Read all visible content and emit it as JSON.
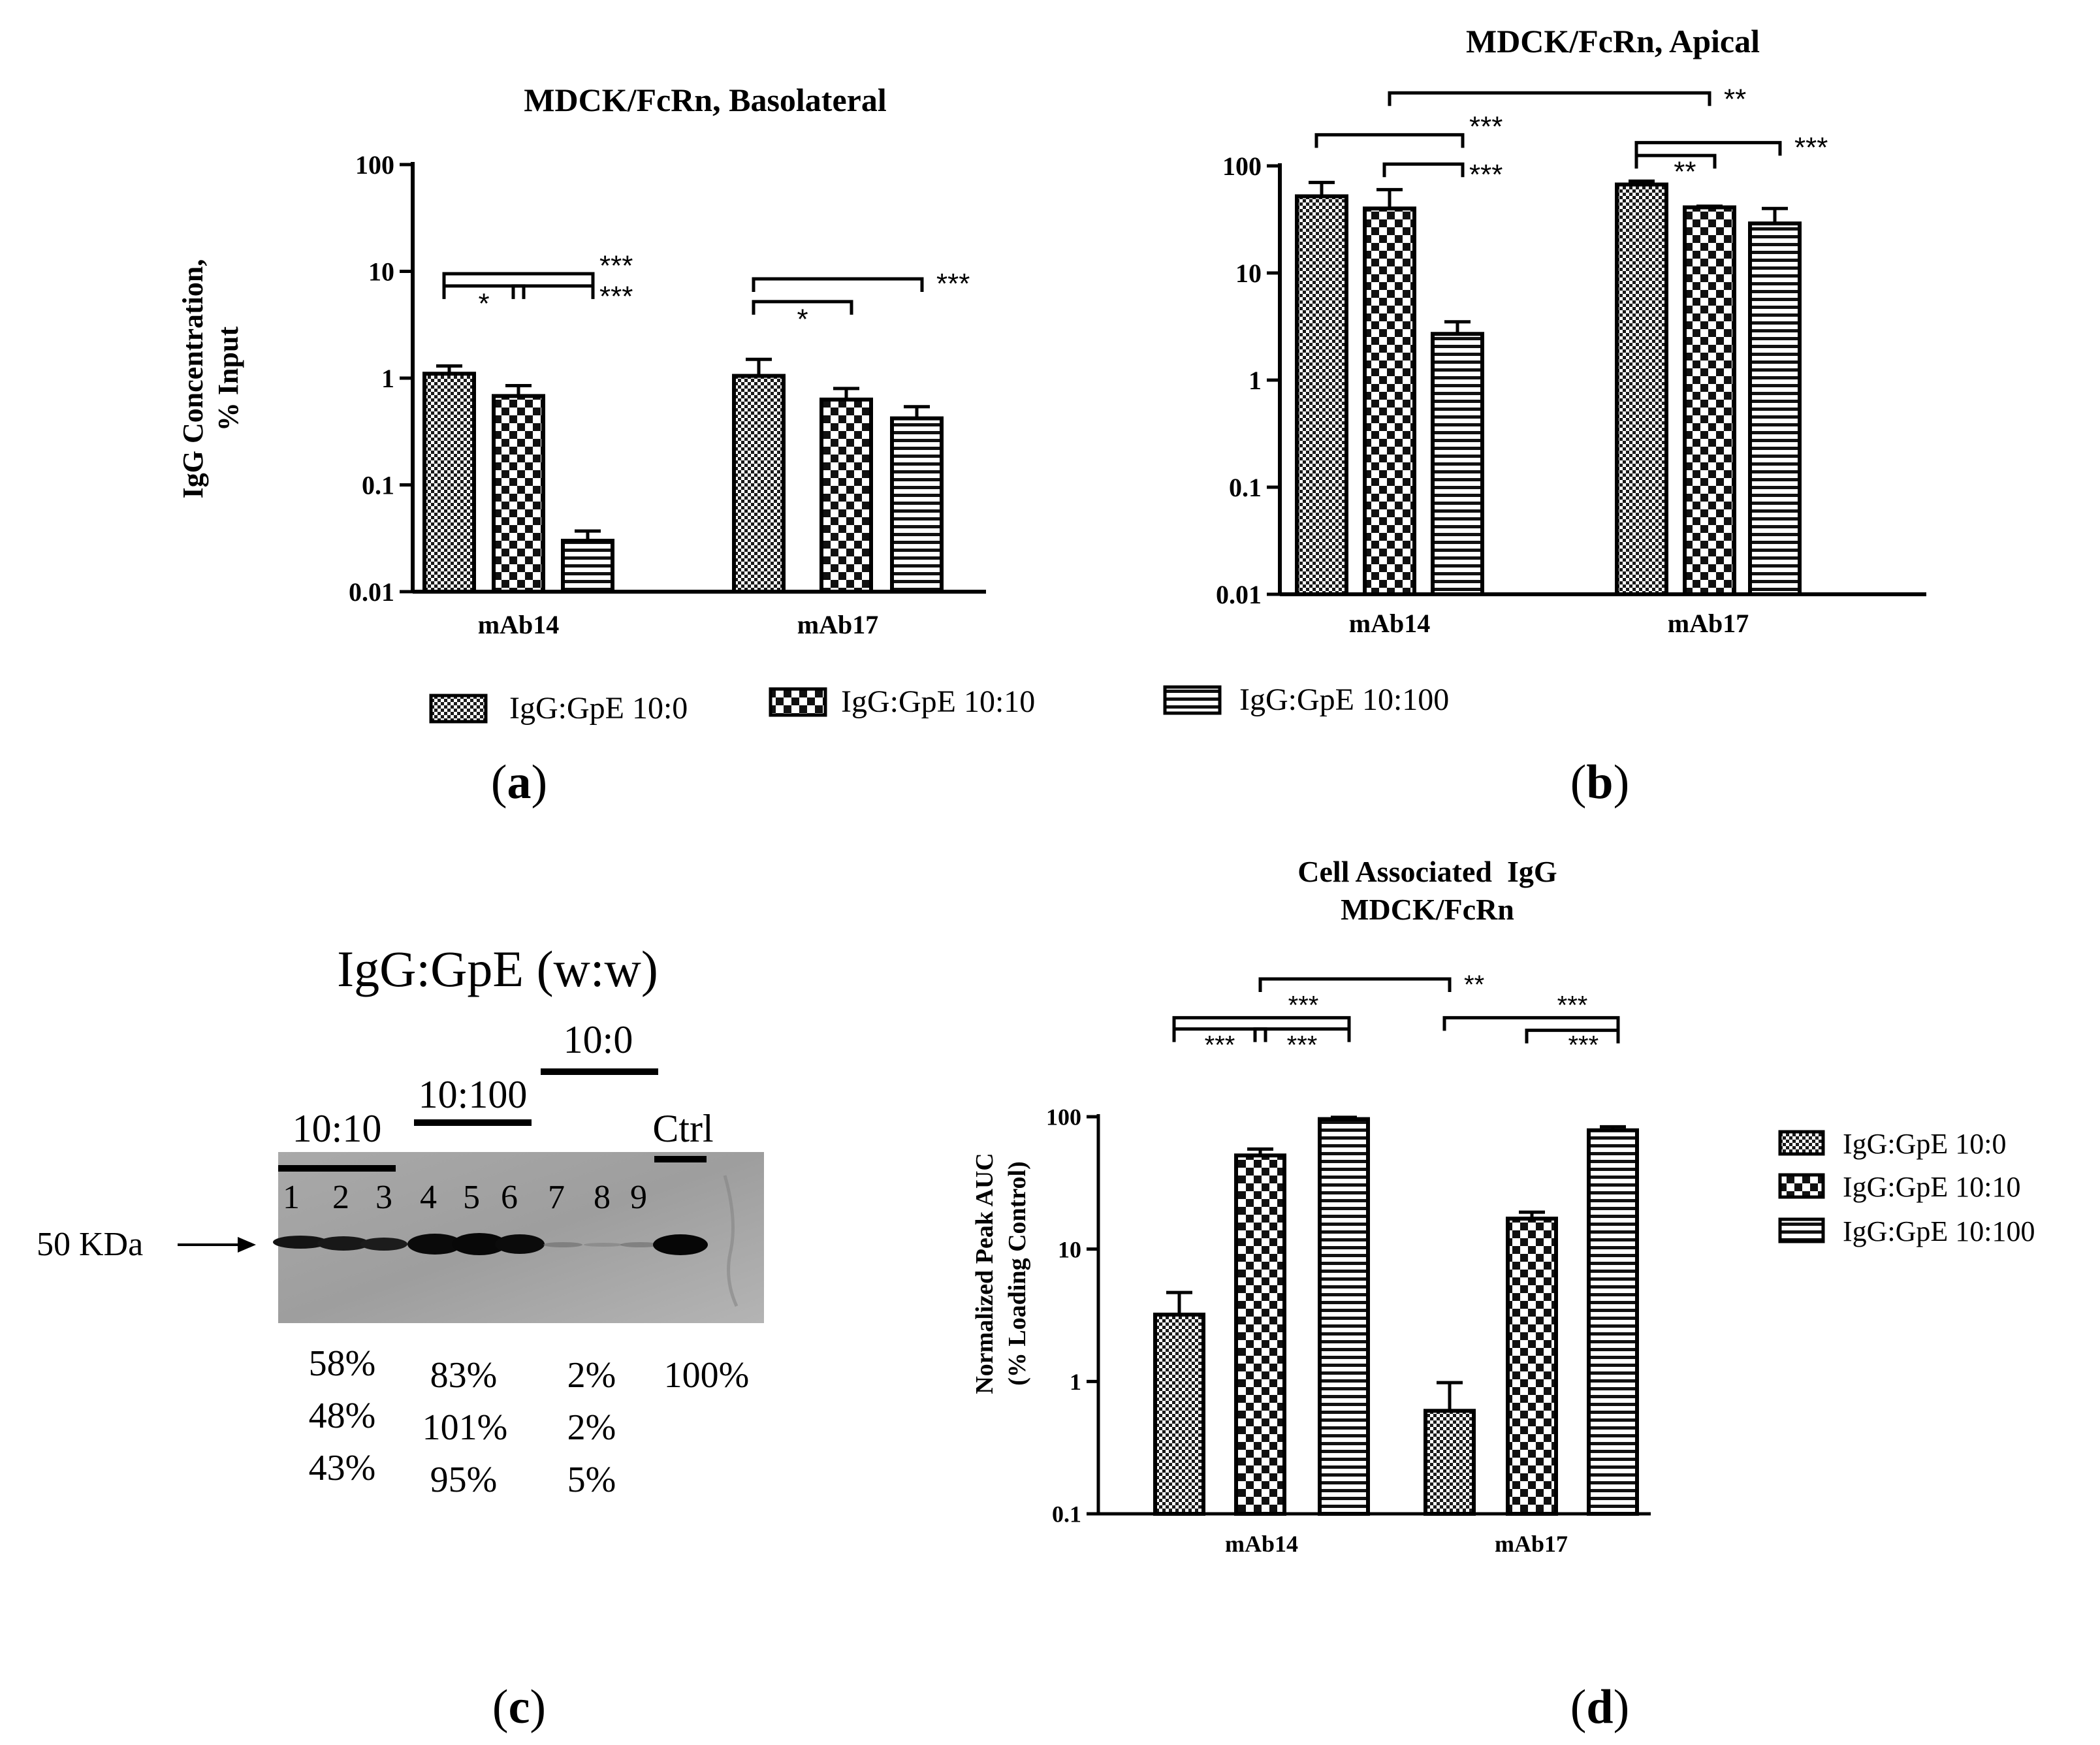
{
  "figure_labels": {
    "a": "a",
    "b": "b",
    "c": "c",
    "d": "d"
  },
  "series_names": [
    "IgG:GpE 10:0",
    "IgG:GpE 10:10",
    "IgG:GpE 10:100"
  ],
  "chart_data": [
    {
      "id": "a",
      "type": "bar",
      "title": "MDCK/FcRn, Basolateral",
      "ylabel_line1": "IgG Concentration,",
      "ylabel_line2": "% Input",
      "yscale": "log",
      "ylim": [
        0.01,
        100
      ],
      "yticks": [
        0.01,
        0.1,
        1,
        10,
        100
      ],
      "ytick_labels": [
        "0.01",
        "0.1",
        "1",
        "10",
        "100"
      ],
      "categories": [
        "mAb14",
        "mAb17"
      ],
      "series": [
        {
          "name": "IgG:GpE 10:0",
          "pattern": "checker-fine",
          "values": [
            1.1,
            1.05
          ],
          "errors": [
            1.3,
            1.5
          ]
        },
        {
          "name": "IgG:GpE 10:10",
          "pattern": "checker-coarse",
          "values": [
            0.68,
            0.63
          ],
          "errors": [
            0.85,
            0.8
          ]
        },
        {
          "name": "IgG:GpE 10:100",
          "pattern": "hstripes",
          "values": [
            0.03,
            0.42
          ],
          "errors": [
            0.037,
            0.54
          ]
        }
      ],
      "legend": "bottom",
      "significance": [
        {
          "cat": 0,
          "from": 0,
          "to": 1,
          "y": 7.3,
          "label": "*",
          "label_pos": "under-mid"
        },
        {
          "cat": 0,
          "from": 1,
          "to": 2,
          "y": 7.3,
          "label": "***",
          "label_pos": "right-low"
        },
        {
          "cat": 0,
          "from": 0,
          "to": 2,
          "y": 9.5,
          "label": "***",
          "label_pos": "right-high"
        },
        {
          "cat": 1,
          "from": 0,
          "to": 1,
          "y": 5.2,
          "label": "*",
          "label_pos": "under-mid"
        },
        {
          "cat": 1,
          "from": 0,
          "to": 2,
          "y": 8.5,
          "label": "***",
          "label_pos": "right"
        }
      ]
    },
    {
      "id": "b",
      "type": "bar",
      "title": "MDCK/FcRn, Apical",
      "yscale": "log",
      "ylim": [
        0.01,
        100
      ],
      "yticks": [
        0.01,
        0.1,
        1,
        10,
        100
      ],
      "ytick_labels": [
        "0.01",
        "0.1",
        "1",
        "10",
        "100"
      ],
      "categories": [
        "mAb14",
        "mAb17"
      ],
      "series": [
        {
          "name": "IgG:GpE 10:0",
          "pattern": "checker-fine",
          "values": [
            52,
            67
          ],
          "errors": [
            70,
            72
          ]
        },
        {
          "name": "IgG:GpE 10:10",
          "pattern": "checker-coarse",
          "values": [
            40,
            41
          ],
          "errors": [
            60,
            42
          ]
        },
        {
          "name": "IgG:GpE 10:100",
          "pattern": "hstripes",
          "values": [
            2.7,
            29
          ],
          "errors": [
            3.5,
            40
          ]
        }
      ],
      "significance": [
        {
          "cat": 0,
          "from": 1,
          "to": 2,
          "y": 104,
          "label": "***",
          "label_pos": "right-low"
        },
        {
          "cat": 0,
          "from": 0,
          "to": 2,
          "y": 195,
          "label": "***",
          "label_pos": "right-high"
        },
        {
          "cat": 1,
          "from": 0,
          "to": 1,
          "y": 125,
          "label": "**",
          "label_pos": "under-right"
        },
        {
          "cat": 1,
          "from": 0,
          "to": 2,
          "y": 165,
          "label": "***",
          "label_pos": "right"
        }
      ],
      "cross_significance": {
        "from_cat": 0,
        "from_series": 1,
        "to_cat": 1,
        "to_series": 1,
        "y": 480,
        "label": "**"
      }
    },
    {
      "id": "d",
      "type": "bar",
      "title_line1": "Cell Associated  IgG",
      "title_line2": "MDCK/FcRn",
      "ylabel_line1": "Normalized Peak AUC",
      "ylabel_line2": "(% Loading Control)",
      "yscale": "log",
      "ylim": [
        0.1,
        100
      ],
      "yticks": [
        0.1,
        1,
        10,
        100
      ],
      "ytick_labels": [
        "0.1",
        "1",
        "10",
        "100"
      ],
      "categories": [
        "mAb14",
        "mAb17"
      ],
      "series": [
        {
          "name": "IgG:GpE 10:0",
          "pattern": "checker-fine",
          "values": [
            3.2,
            0.6
          ],
          "errors": [
            4.7,
            0.98
          ]
        },
        {
          "name": "IgG:GpE 10:10",
          "pattern": "checker-coarse",
          "values": [
            51,
            17
          ],
          "errors": [
            57,
            19
          ]
        },
        {
          "name": "IgG:GpE 10:100",
          "pattern": "hstripes",
          "values": [
            96,
            79
          ],
          "errors": [
            99,
            84
          ]
        }
      ],
      "legend": "right",
      "significance": [
        {
          "cat": 0,
          "from": 0,
          "to": 1,
          "y": 460,
          "label": "***",
          "label_pos": "under-mid"
        },
        {
          "cat": 0,
          "from": 1,
          "to": 2,
          "y": 460,
          "label": "***",
          "label_pos": "under-mid"
        },
        {
          "cat": 0,
          "from": 0,
          "to": 2,
          "y": 560,
          "label": "***",
          "label_pos": "above-right"
        },
        {
          "cat": 1,
          "from": 1,
          "to": 2,
          "y": 450,
          "label": "***",
          "label_pos": "under-right"
        },
        {
          "cat": 1,
          "from": 0,
          "to": 2,
          "y": 560,
          "label": "***",
          "label_pos": "above-right"
        }
      ],
      "cross_significance": {
        "from_cat": 0,
        "from_series": 1,
        "to_cat": 1,
        "to_series": 0,
        "y": 1100,
        "label": "**"
      }
    }
  ],
  "blot": {
    "title": "IgG:GpE (w:w)",
    "group_labels": {
      "g1": "10:10",
      "g2": "10:100",
      "g3": "10:0",
      "ctrl": "Ctrl"
    },
    "lane_numbers": [
      "1",
      "2",
      "3",
      "4",
      "5",
      "6",
      "7",
      "8",
      "9"
    ],
    "marker_label": "50 KDa",
    "percentages": {
      "g1": [
        "58%",
        "48%",
        "43%"
      ],
      "g2": [
        "83%",
        "101%",
        "95%"
      ],
      "g3": [
        "2%",
        "2%",
        "5%"
      ],
      "ctrl": [
        "100%"
      ]
    }
  }
}
